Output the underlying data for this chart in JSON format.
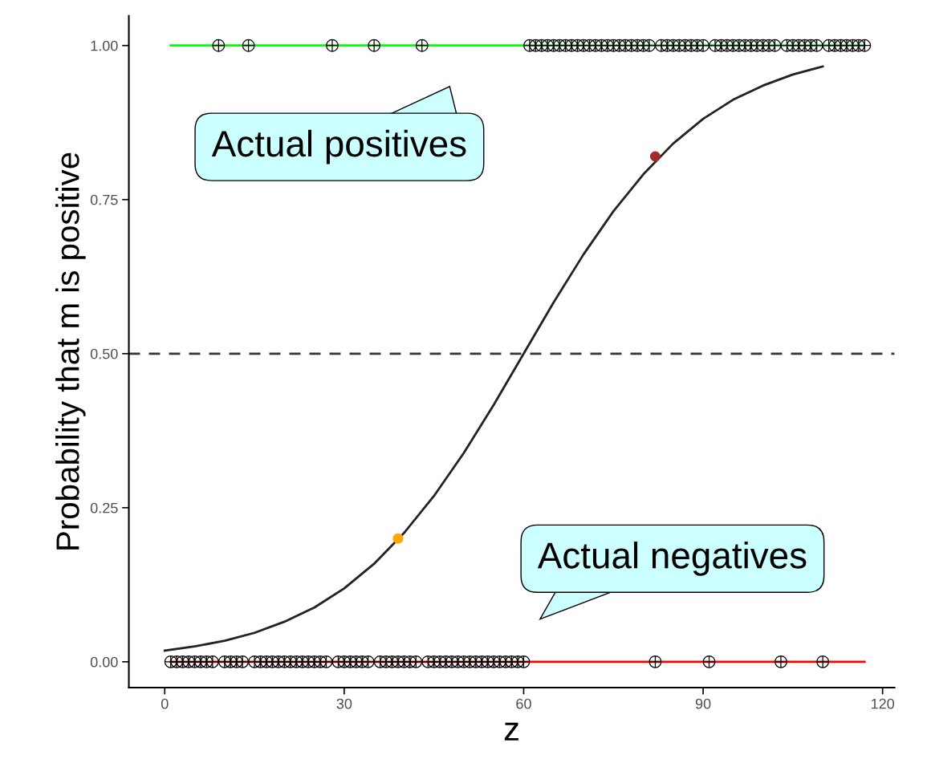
{
  "chart_data": {
    "type": "scatter",
    "xlabel": "z",
    "ylabel": "Probability that m is positive",
    "xlim": [
      -6,
      122
    ],
    "ylim": [
      -0.042,
      1.048
    ],
    "xticks": [
      0,
      30,
      60,
      90,
      120
    ],
    "yticks": [
      {
        "value": 0,
        "label": "0.00"
      },
      {
        "value": 0.25,
        "label": "0.25"
      },
      {
        "value": 0.5,
        "label": "0.50"
      },
      {
        "value": 0.75,
        "label": "0.75"
      },
      {
        "value": 1,
        "label": "1.00"
      }
    ],
    "grid": false,
    "ref_lines": [
      {
        "axis": "y",
        "value": 0.5,
        "color": "#333333",
        "line_style": "dashed"
      }
    ],
    "annotations": [
      "Actual positives",
      "Actual negatives"
    ],
    "series": [
      {
        "type": "line",
        "color": "#00ff00",
        "x": [
          1,
          117
        ],
        "values": [
          1,
          1
        ]
      },
      {
        "type": "line",
        "color": "#ff0000",
        "x": [
          1,
          117
        ],
        "values": [
          0,
          0
        ]
      },
      {
        "marker": "cross",
        "color": "#000000",
        "x": [
          9,
          14,
          28,
          35,
          43,
          61,
          62,
          63,
          64,
          65,
          66,
          67,
          68,
          69,
          70,
          71,
          72,
          73,
          74,
          75,
          76,
          77,
          78,
          79,
          80,
          81,
          83,
          84,
          85,
          86,
          87,
          88,
          89,
          90,
          92,
          93,
          94,
          95,
          96,
          97,
          98,
          99,
          100,
          101,
          102,
          104,
          105,
          106,
          107,
          108,
          109,
          111,
          112,
          113,
          114,
          115,
          116,
          117
        ],
        "values": [
          1,
          1,
          1,
          1,
          1,
          1,
          1,
          1,
          1,
          1,
          1,
          1,
          1,
          1,
          1,
          1,
          1,
          1,
          1,
          1,
          1,
          1,
          1,
          1,
          1,
          1,
          1,
          1,
          1,
          1,
          1,
          1,
          1,
          1,
          1,
          1,
          1,
          1,
          1,
          1,
          1,
          1,
          1,
          1,
          1,
          1,
          1,
          1,
          1,
          1,
          1,
          1,
          1,
          1,
          1,
          1,
          1,
          1
        ]
      },
      {
        "marker": "cross",
        "color": "#000000",
        "x": [
          1,
          2,
          3,
          4,
          5,
          6,
          7,
          8,
          10,
          11,
          12,
          13,
          15,
          16,
          17,
          18,
          19,
          20,
          21,
          22,
          23,
          24,
          25,
          26,
          27,
          29,
          30,
          31,
          32,
          33,
          34,
          36,
          37,
          38,
          39,
          40,
          41,
          42,
          44,
          45,
          46,
          47,
          48,
          49,
          50,
          51,
          52,
          53,
          54,
          55,
          56,
          57,
          58,
          59,
          60,
          82,
          91,
          103,
          110
        ],
        "values": [
          0,
          0,
          0,
          0,
          0,
          0,
          0,
          0,
          0,
          0,
          0,
          0,
          0,
          0,
          0,
          0,
          0,
          0,
          0,
          0,
          0,
          0,
          0,
          0,
          0,
          0,
          0,
          0,
          0,
          0,
          0,
          0,
          0,
          0,
          0,
          0,
          0,
          0,
          0,
          0,
          0,
          0,
          0,
          0,
          0,
          0,
          0,
          0,
          0,
          0,
          0,
          0,
          0,
          0,
          0,
          0,
          0,
          0,
          0
        ]
      },
      {
        "type": "line",
        "color": "#222222",
        "x": [
          0,
          5,
          10,
          15,
          20,
          25,
          30,
          35,
          40,
          45,
          50,
          55,
          60,
          65,
          70,
          75,
          80,
          85,
          90,
          95,
          100,
          105,
          110
        ],
        "values": [
          0.018,
          0.025,
          0.034,
          0.047,
          0.065,
          0.088,
          0.119,
          0.159,
          0.209,
          0.269,
          0.339,
          0.417,
          0.5,
          0.583,
          0.661,
          0.731,
          0.791,
          0.841,
          0.881,
          0.912,
          0.935,
          0.953,
          0.966
        ]
      },
      {
        "marker": "circle",
        "color": "#ffa500",
        "x": [
          39
        ],
        "values": [
          0.2
        ]
      },
      {
        "marker": "circle",
        "color": "#a52a2a",
        "x": [
          82
        ],
        "values": [
          0.82
        ]
      }
    ]
  }
}
